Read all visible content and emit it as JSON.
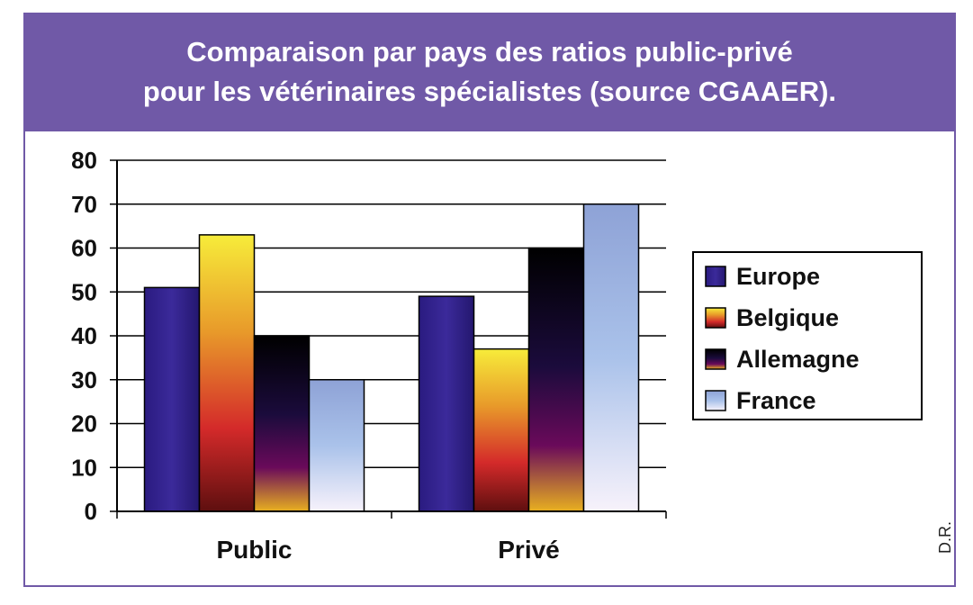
{
  "title_lines": [
    "Comparaison par pays des ratios public-privé",
    "pour les vétérinaires spécialistes (source CGAAER)."
  ],
  "credit": "D.R.",
  "colors": {
    "frame": "#7059a7",
    "europe": "#2e1f8a",
    "belgique": [
      "#f7ec3a",
      "#e08a2a",
      "#d42a2a",
      "#6a1010"
    ],
    "allemagne": [
      "#000000",
      "#1a0a3a",
      "#6a0a5a",
      "#e8b020"
    ],
    "france": [
      "#8aa0d4",
      "#a8c0ea",
      "#f6f0fa"
    ]
  },
  "chart_data": {
    "type": "bar",
    "title": "Comparaison par pays des ratios public-privé pour les vétérinaires spécialistes (source CGAAER).",
    "categories": [
      "Public",
      "Privé"
    ],
    "series": [
      {
        "name": "Europe",
        "values": [
          51,
          49
        ]
      },
      {
        "name": "Belgique",
        "values": [
          63,
          37
        ]
      },
      {
        "name": "Allemagne",
        "values": [
          40,
          60
        ]
      },
      {
        "name": "France",
        "values": [
          30,
          70
        ]
      }
    ],
    "ylim": [
      0,
      80
    ],
    "yticks": [
      "0",
      "10",
      "20",
      "30",
      "40",
      "50",
      "60",
      "70",
      "80"
    ],
    "grid": true,
    "legend_position": "right"
  }
}
